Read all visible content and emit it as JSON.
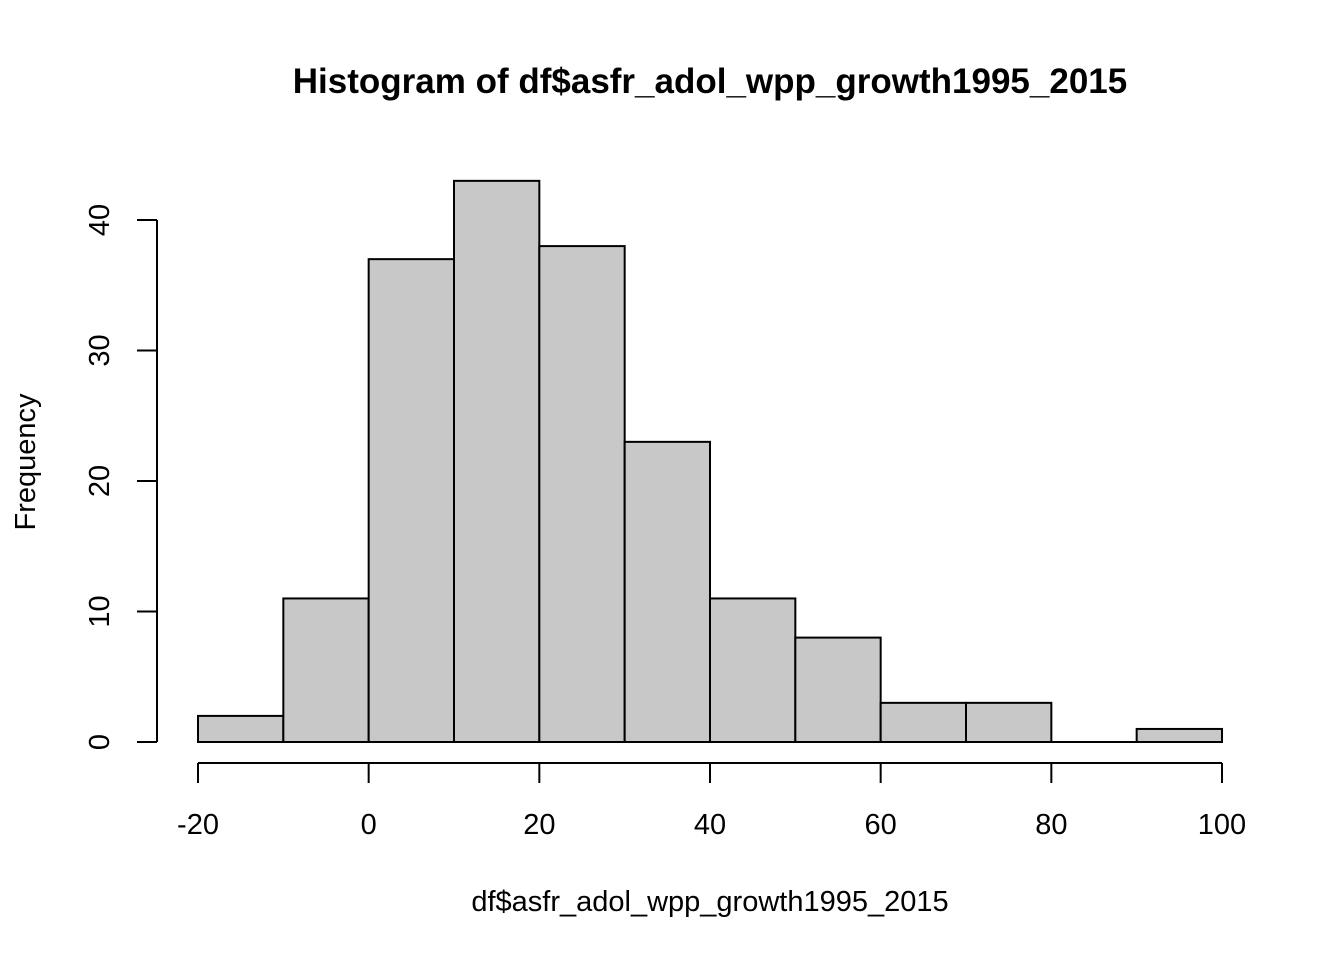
{
  "chart_data": {
    "type": "histogram",
    "title": "Histogram of df$asfr_adol_wpp_growth1995_2015",
    "xlabel": "df$asfr_adol_wpp_growth1995_2015",
    "ylabel": "Frequency",
    "bins": [
      {
        "start": -20,
        "end": -10,
        "count": 2
      },
      {
        "start": -10,
        "end": 0,
        "count": 11
      },
      {
        "start": 0,
        "end": 10,
        "count": 37
      },
      {
        "start": 10,
        "end": 20,
        "count": 43
      },
      {
        "start": 20,
        "end": 30,
        "count": 38
      },
      {
        "start": 30,
        "end": 40,
        "count": 23
      },
      {
        "start": 40,
        "end": 50,
        "count": 11
      },
      {
        "start": 50,
        "end": 60,
        "count": 8
      },
      {
        "start": 60,
        "end": 70,
        "count": 3
      },
      {
        "start": 70,
        "end": 80,
        "count": 3
      },
      {
        "start": 80,
        "end": 90,
        "count": 0
      },
      {
        "start": 90,
        "end": 100,
        "count": 1
      }
    ],
    "x_ticks": [
      -20,
      0,
      20,
      40,
      60,
      80,
      100
    ],
    "y_ticks": [
      0,
      10,
      20,
      30,
      40
    ],
    "xlim": [
      -20,
      100
    ],
    "ylim": [
      0,
      43
    ],
    "bar_color": "#c8c8c8",
    "grid": false
  }
}
